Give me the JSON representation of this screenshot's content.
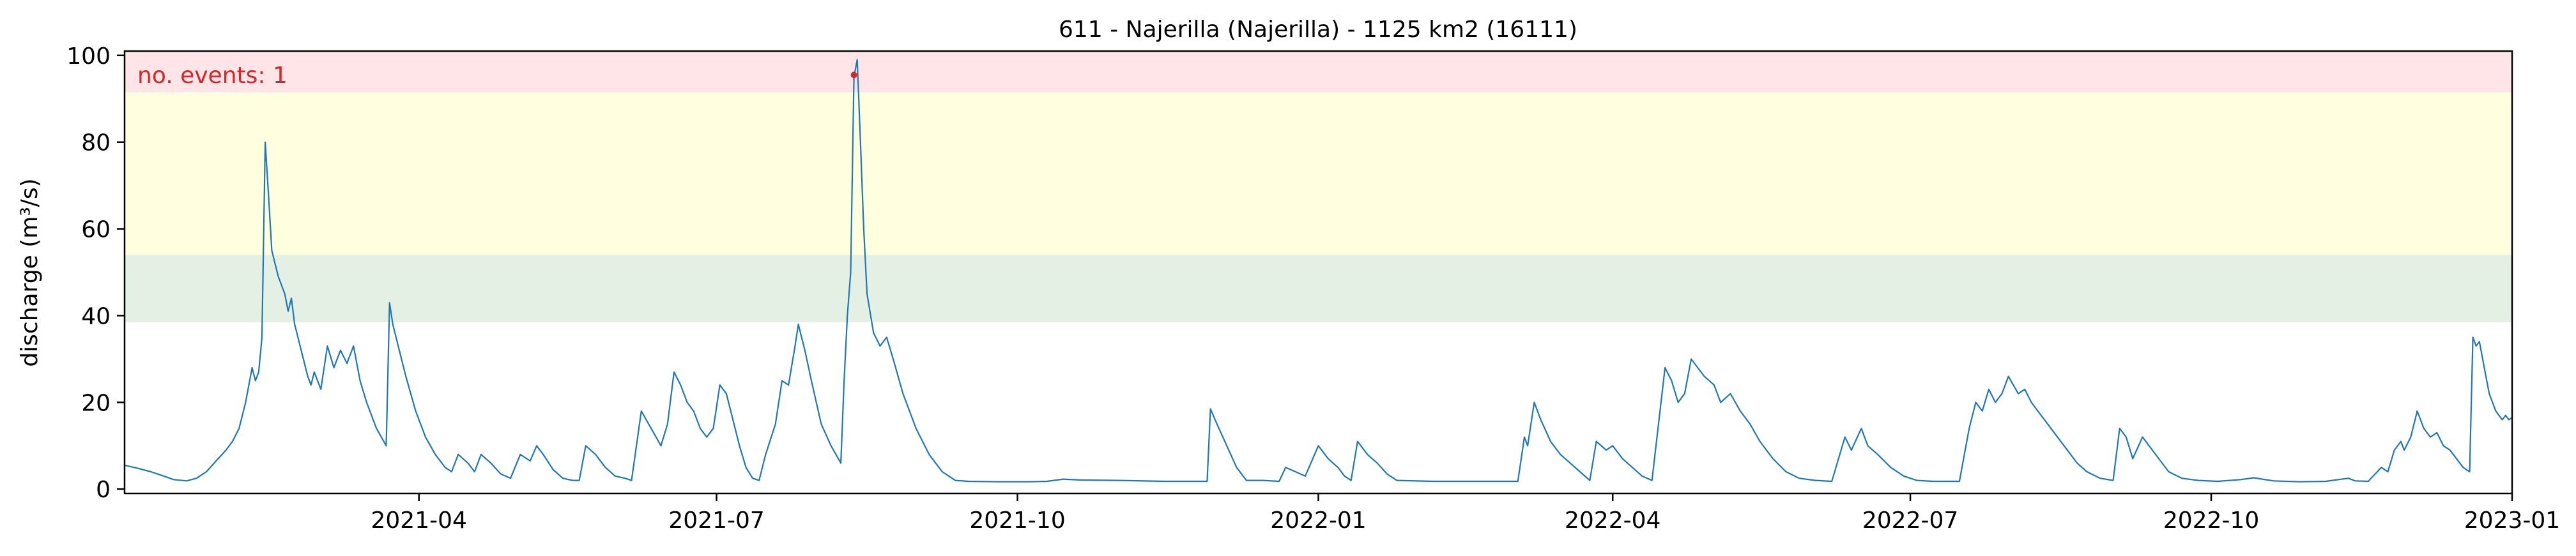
{
  "chart_data": {
    "type": "line",
    "title": "611 - Najerilla (Najerilla) - 1125 km2 (16111)",
    "xlabel": "",
    "ylabel": "discharge (m³/s)",
    "xlim": [
      "2021-01-01",
      "2023-01-01"
    ],
    "ylim": [
      -1,
      101
    ],
    "xticks": [
      "2021-04-01",
      "2021-07-01",
      "2021-10-01",
      "2022-01-01",
      "2022-04-01",
      "2022-07-01",
      "2022-10-01",
      "2023-01-01"
    ],
    "xtick_labels": [
      "2021-04",
      "2021-07",
      "2021-10",
      "2022-01",
      "2022-04",
      "2022-07",
      "2022-10",
      "2023-01"
    ],
    "yticks": [
      0,
      20,
      40,
      60,
      80,
      100
    ],
    "ytick_labels": [
      "0",
      "20",
      "40",
      "60",
      "80",
      "100"
    ],
    "grid": false,
    "legend": "none",
    "bands": [
      {
        "from": 38.5,
        "to": 54,
        "color": "#e5f0e5"
      },
      {
        "from": 54,
        "to": 91.5,
        "color": "#ffffe0"
      },
      {
        "from": 91.5,
        "to": 101,
        "color": "#ffe4e8"
      }
    ],
    "series": [
      {
        "color": "#1f77b4",
        "points": [
          [
            "2021-01-01",
            5.5
          ],
          [
            "2021-01-05",
            4.8
          ],
          [
            "2021-01-09",
            4.0
          ],
          [
            "2021-01-13",
            3.0
          ],
          [
            "2021-01-16",
            2.2
          ],
          [
            "2021-01-20",
            1.9
          ],
          [
            "2021-01-23",
            2.5
          ],
          [
            "2021-01-26",
            4.0
          ],
          [
            "2021-01-29",
            6.5
          ],
          [
            "2021-02-01",
            9.0
          ],
          [
            "2021-02-03",
            11.0
          ],
          [
            "2021-02-05",
            14.0
          ],
          [
            "2021-02-07",
            20.0
          ],
          [
            "2021-02-09",
            28.0
          ],
          [
            "2021-02-10",
            25.0
          ],
          [
            "2021-02-11",
            27.0
          ],
          [
            "2021-02-12",
            35.0
          ],
          [
            "2021-02-13",
            80.0
          ],
          [
            "2021-02-14",
            68.0
          ],
          [
            "2021-02-15",
            55.0
          ],
          [
            "2021-02-17",
            49.0
          ],
          [
            "2021-02-19",
            45.0
          ],
          [
            "2021-02-20",
            41.0
          ],
          [
            "2021-02-21",
            44.0
          ],
          [
            "2021-02-22",
            38.0
          ],
          [
            "2021-02-24",
            32.0
          ],
          [
            "2021-02-26",
            26.0
          ],
          [
            "2021-02-27",
            24.0
          ],
          [
            "2021-02-28",
            27.0
          ],
          [
            "2021-03-02",
            23.0
          ],
          [
            "2021-03-04",
            33.0
          ],
          [
            "2021-03-06",
            28.0
          ],
          [
            "2021-03-08",
            32.0
          ],
          [
            "2021-03-10",
            29.0
          ],
          [
            "2021-03-12",
            33.0
          ],
          [
            "2021-03-14",
            25.0
          ],
          [
            "2021-03-16",
            20.0
          ],
          [
            "2021-03-19",
            14.0
          ],
          [
            "2021-03-22",
            10.0
          ],
          [
            "2021-03-23",
            43.0
          ],
          [
            "2021-03-24",
            38.0
          ],
          [
            "2021-03-26",
            32.0
          ],
          [
            "2021-03-28",
            26.0
          ],
          [
            "2021-03-31",
            18.0
          ],
          [
            "2021-04-03",
            12.0
          ],
          [
            "2021-04-06",
            8.0
          ],
          [
            "2021-04-09",
            5.0
          ],
          [
            "2021-04-11",
            4.0
          ],
          [
            "2021-04-13",
            8.0
          ],
          [
            "2021-04-16",
            6.0
          ],
          [
            "2021-04-18",
            4.0
          ],
          [
            "2021-04-20",
            8.0
          ],
          [
            "2021-04-23",
            6.0
          ],
          [
            "2021-04-26",
            3.5
          ],
          [
            "2021-04-29",
            2.5
          ],
          [
            "2021-05-02",
            8.0
          ],
          [
            "2021-05-05",
            6.5
          ],
          [
            "2021-05-07",
            10.0
          ],
          [
            "2021-05-09",
            8.0
          ],
          [
            "2021-05-12",
            4.5
          ],
          [
            "2021-05-15",
            2.5
          ],
          [
            "2021-05-18",
            2.0
          ],
          [
            "2021-05-20",
            2.0
          ],
          [
            "2021-05-22",
            10.0
          ],
          [
            "2021-05-25",
            8.0
          ],
          [
            "2021-05-28",
            5.0
          ],
          [
            "2021-05-31",
            3.0
          ],
          [
            "2021-06-03",
            2.5
          ],
          [
            "2021-06-05",
            2.0
          ],
          [
            "2021-06-08",
            18.0
          ],
          [
            "2021-06-11",
            14.0
          ],
          [
            "2021-06-14",
            10.0
          ],
          [
            "2021-06-16",
            15.0
          ],
          [
            "2021-06-18",
            27.0
          ],
          [
            "2021-06-20",
            24.0
          ],
          [
            "2021-06-22",
            20.0
          ],
          [
            "2021-06-24",
            18.0
          ],
          [
            "2021-06-26",
            14.0
          ],
          [
            "2021-06-28",
            12.0
          ],
          [
            "2021-06-30",
            14.0
          ],
          [
            "2021-07-02",
            24.0
          ],
          [
            "2021-07-04",
            22.0
          ],
          [
            "2021-07-06",
            16.0
          ],
          [
            "2021-07-08",
            10.0
          ],
          [
            "2021-07-10",
            5.0
          ],
          [
            "2021-07-12",
            2.5
          ],
          [
            "2021-07-14",
            2.0
          ],
          [
            "2021-07-16",
            8.0
          ],
          [
            "2021-07-19",
            15.0
          ],
          [
            "2021-07-21",
            25.0
          ],
          [
            "2021-07-23",
            24.0
          ],
          [
            "2021-07-25",
            33.0
          ],
          [
            "2021-07-26",
            38.0
          ],
          [
            "2021-07-28",
            32.0
          ],
          [
            "2021-07-30",
            25.0
          ],
          [
            "2021-08-02",
            15.0
          ],
          [
            "2021-08-05",
            10.0
          ],
          [
            "2021-08-08",
            6.0
          ],
          [
            "2021-08-09",
            25.0
          ],
          [
            "2021-08-10",
            40.0
          ],
          [
            "2021-08-11",
            50.0
          ],
          [
            "2021-08-12",
            95.0
          ],
          [
            "2021-08-13",
            99.0
          ],
          [
            "2021-08-14",
            80.0
          ],
          [
            "2021-08-15",
            60.0
          ],
          [
            "2021-08-16",
            45.0
          ],
          [
            "2021-08-18",
            36.0
          ],
          [
            "2021-08-20",
            33.0
          ],
          [
            "2021-08-22",
            35.0
          ],
          [
            "2021-08-24",
            30.0
          ],
          [
            "2021-08-27",
            22.0
          ],
          [
            "2021-08-31",
            14.0
          ],
          [
            "2021-09-04",
            8.0
          ],
          [
            "2021-09-08",
            4.0
          ],
          [
            "2021-09-12",
            2.0
          ],
          [
            "2021-09-16",
            1.8
          ],
          [
            "2021-09-25",
            1.7
          ],
          [
            "2021-10-05",
            1.7
          ],
          [
            "2021-10-10",
            1.8
          ],
          [
            "2021-10-15",
            2.3
          ],
          [
            "2021-10-20",
            2.1
          ],
          [
            "2021-11-01",
            2.0
          ],
          [
            "2021-11-15",
            1.8
          ],
          [
            "2021-11-28",
            1.8
          ],
          [
            "2021-11-29",
            18.5
          ],
          [
            "2021-12-01",
            15.0
          ],
          [
            "2021-12-04",
            10.0
          ],
          [
            "2021-12-07",
            5.0
          ],
          [
            "2021-12-10",
            2.0
          ],
          [
            "2021-12-15",
            2.0
          ],
          [
            "2021-12-20",
            1.8
          ],
          [
            "2021-12-22",
            5.0
          ],
          [
            "2021-12-25",
            4.0
          ],
          [
            "2021-12-28",
            3.0
          ],
          [
            "2022-01-01",
            10.0
          ],
          [
            "2022-01-04",
            7.0
          ],
          [
            "2022-01-07",
            5.0
          ],
          [
            "2022-01-09",
            3.0
          ],
          [
            "2022-01-11",
            2.0
          ],
          [
            "2022-01-13",
            11.0
          ],
          [
            "2022-01-16",
            8.0
          ],
          [
            "2022-01-19",
            6.0
          ],
          [
            "2022-01-22",
            3.5
          ],
          [
            "2022-01-25",
            2.0
          ],
          [
            "2022-02-05",
            1.8
          ],
          [
            "2022-02-20",
            1.8
          ],
          [
            "2022-03-03",
            1.8
          ],
          [
            "2022-03-05",
            12.0
          ],
          [
            "2022-03-06",
            10.0
          ],
          [
            "2022-03-08",
            20.0
          ],
          [
            "2022-03-10",
            16.0
          ],
          [
            "2022-03-13",
            11.0
          ],
          [
            "2022-03-16",
            8.0
          ],
          [
            "2022-03-19",
            6.0
          ],
          [
            "2022-03-22",
            4.0
          ],
          [
            "2022-03-25",
            2.0
          ],
          [
            "2022-03-27",
            11.0
          ],
          [
            "2022-03-30",
            9.0
          ],
          [
            "2022-04-01",
            10.0
          ],
          [
            "2022-04-04",
            7.0
          ],
          [
            "2022-04-07",
            5.0
          ],
          [
            "2022-04-10",
            3.0
          ],
          [
            "2022-04-13",
            2.0
          ],
          [
            "2022-04-17",
            28.0
          ],
          [
            "2022-04-19",
            25.0
          ],
          [
            "2022-04-21",
            20.0
          ],
          [
            "2022-04-23",
            22.0
          ],
          [
            "2022-04-25",
            30.0
          ],
          [
            "2022-04-27",
            28.0
          ],
          [
            "2022-04-29",
            26.0
          ],
          [
            "2022-05-02",
            24.0
          ],
          [
            "2022-05-04",
            20.0
          ],
          [
            "2022-05-07",
            22.0
          ],
          [
            "2022-05-10",
            18.0
          ],
          [
            "2022-05-13",
            15.0
          ],
          [
            "2022-05-16",
            11.0
          ],
          [
            "2022-05-20",
            7.0
          ],
          [
            "2022-05-24",
            4.0
          ],
          [
            "2022-05-28",
            2.5
          ],
          [
            "2022-06-02",
            2.0
          ],
          [
            "2022-06-07",
            1.8
          ],
          [
            "2022-06-11",
            12.0
          ],
          [
            "2022-06-13",
            9.0
          ],
          [
            "2022-06-16",
            14.0
          ],
          [
            "2022-06-18",
            10.0
          ],
          [
            "2022-06-21",
            8.0
          ],
          [
            "2022-06-25",
            5.0
          ],
          [
            "2022-06-29",
            3.0
          ],
          [
            "2022-07-03",
            2.0
          ],
          [
            "2022-07-08",
            1.8
          ],
          [
            "2022-07-16",
            1.8
          ],
          [
            "2022-07-19",
            14.0
          ],
          [
            "2022-07-21",
            20.0
          ],
          [
            "2022-07-23",
            18.0
          ],
          [
            "2022-07-25",
            23.0
          ],
          [
            "2022-07-27",
            20.0
          ],
          [
            "2022-07-29",
            22.0
          ],
          [
            "2022-07-31",
            26.0
          ],
          [
            "2022-08-03",
            22.0
          ],
          [
            "2022-08-05",
            23.0
          ],
          [
            "2022-08-07",
            20.0
          ],
          [
            "2022-08-09",
            18.0
          ],
          [
            "2022-08-12",
            15.0
          ],
          [
            "2022-08-15",
            12.0
          ],
          [
            "2022-08-18",
            9.0
          ],
          [
            "2022-08-21",
            6.0
          ],
          [
            "2022-08-24",
            4.0
          ],
          [
            "2022-08-28",
            2.5
          ],
          [
            "2022-09-01",
            2.0
          ],
          [
            "2022-09-03",
            14.0
          ],
          [
            "2022-09-05",
            12.0
          ],
          [
            "2022-09-07",
            7.0
          ],
          [
            "2022-09-10",
            12.0
          ],
          [
            "2022-09-12",
            10.0
          ],
          [
            "2022-09-15",
            7.0
          ],
          [
            "2022-09-18",
            4.0
          ],
          [
            "2022-09-22",
            2.5
          ],
          [
            "2022-09-27",
            2.0
          ],
          [
            "2022-10-03",
            1.8
          ],
          [
            "2022-10-10",
            2.2
          ],
          [
            "2022-10-14",
            2.6
          ],
          [
            "2022-10-20",
            1.9
          ],
          [
            "2022-10-28",
            1.7
          ],
          [
            "2022-11-05",
            1.8
          ],
          [
            "2022-11-12",
            2.5
          ],
          [
            "2022-11-14",
            1.9
          ],
          [
            "2022-11-18",
            1.8
          ],
          [
            "2022-11-22",
            5.0
          ],
          [
            "2022-11-24",
            4.0
          ],
          [
            "2022-11-26",
            9.0
          ],
          [
            "2022-11-28",
            11.0
          ],
          [
            "2022-11-29",
            9.0
          ],
          [
            "2022-12-01",
            12.0
          ],
          [
            "2022-12-03",
            18.0
          ],
          [
            "2022-12-05",
            14.0
          ],
          [
            "2022-12-07",
            12.0
          ],
          [
            "2022-12-09",
            13.0
          ],
          [
            "2022-12-11",
            10.0
          ],
          [
            "2022-12-13",
            9.0
          ],
          [
            "2022-12-15",
            7.0
          ],
          [
            "2022-12-17",
            5.0
          ],
          [
            "2022-12-19",
            4.0
          ],
          [
            "2022-12-20",
            35.0
          ],
          [
            "2022-12-21",
            33.0
          ],
          [
            "2022-12-22",
            34.0
          ],
          [
            "2022-12-23",
            30.0
          ],
          [
            "2022-12-24",
            26.0
          ],
          [
            "2022-12-25",
            22.0
          ],
          [
            "2022-12-26",
            20.0
          ],
          [
            "2022-12-27",
            18.0
          ],
          [
            "2022-12-28",
            17.0
          ],
          [
            "2022-12-29",
            16.0
          ],
          [
            "2022-12-30",
            17.0
          ],
          [
            "2022-12-31",
            16.0
          ],
          [
            "2023-01-01",
            16.5
          ]
        ]
      }
    ],
    "events": [
      {
        "x": "2021-08-12",
        "y": 95.5,
        "color": "#d62728"
      }
    ],
    "annotation": {
      "text": "no. events: 1",
      "color": "#d62728",
      "position": "top-left"
    }
  }
}
